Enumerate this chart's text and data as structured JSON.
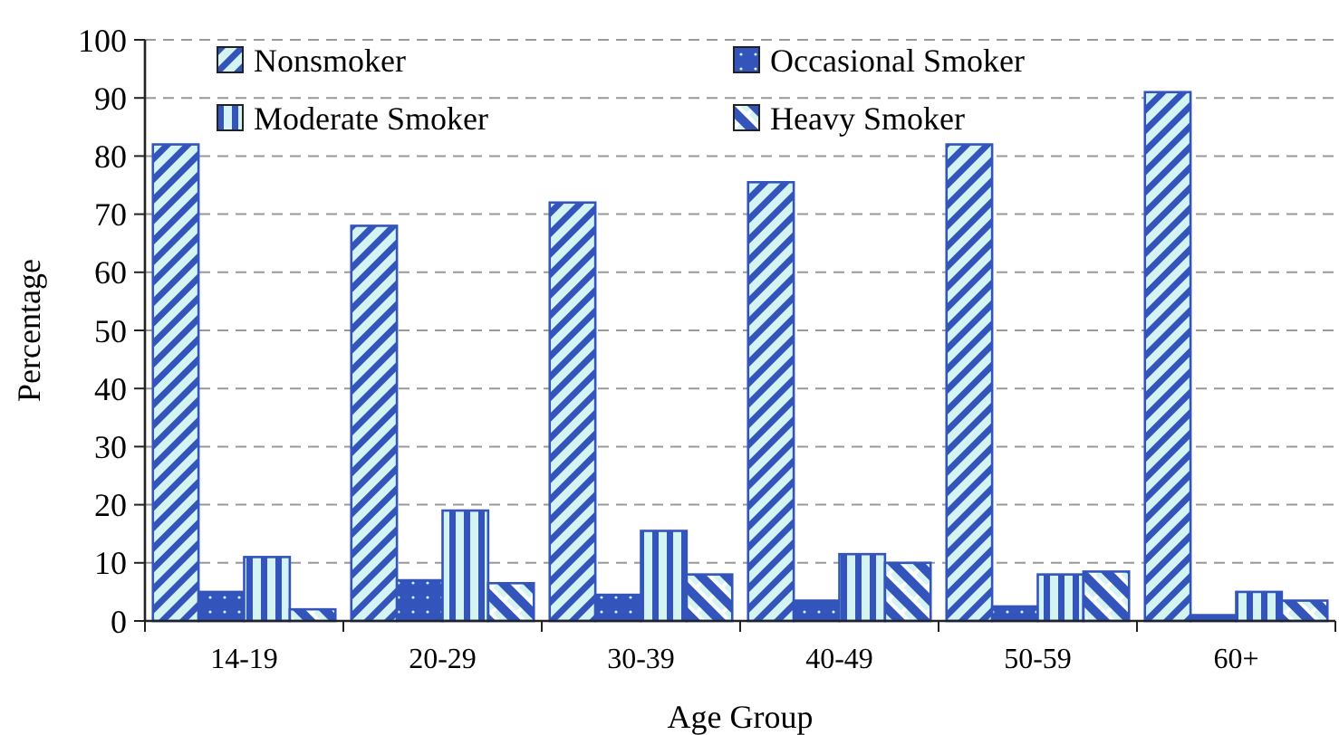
{
  "chart_data": {
    "type": "bar",
    "xlabel": "Age Group",
    "ylabel": "Percentage",
    "categories": [
      "14-19",
      "20-29",
      "30-39",
      "40-49",
      "50-59",
      "60+"
    ],
    "series": [
      {
        "name": "Nonsmoker",
        "color": "#3355bb",
        "values": [
          82,
          68,
          72,
          75.5,
          82,
          91
        ]
      },
      {
        "name": "Occasional Smoker",
        "color": "#3355bb",
        "values": [
          5,
          7,
          4.5,
          3.5,
          2.5,
          1
        ]
      },
      {
        "name": "Moderate Smoker",
        "color": "#3355bb",
        "values": [
          11,
          19,
          15.5,
          11.5,
          8,
          5
        ]
      },
      {
        "name": "Heavy Smoker",
        "color": "#3355bb",
        "values": [
          2,
          6.5,
          8,
          10,
          8.5,
          3.5
        ]
      }
    ],
    "ylim": [
      0,
      100
    ],
    "yticks": [
      0,
      10,
      20,
      30,
      40,
      50,
      60,
      70,
      80,
      90,
      100
    ],
    "grid": "y",
    "legend": "top"
  }
}
